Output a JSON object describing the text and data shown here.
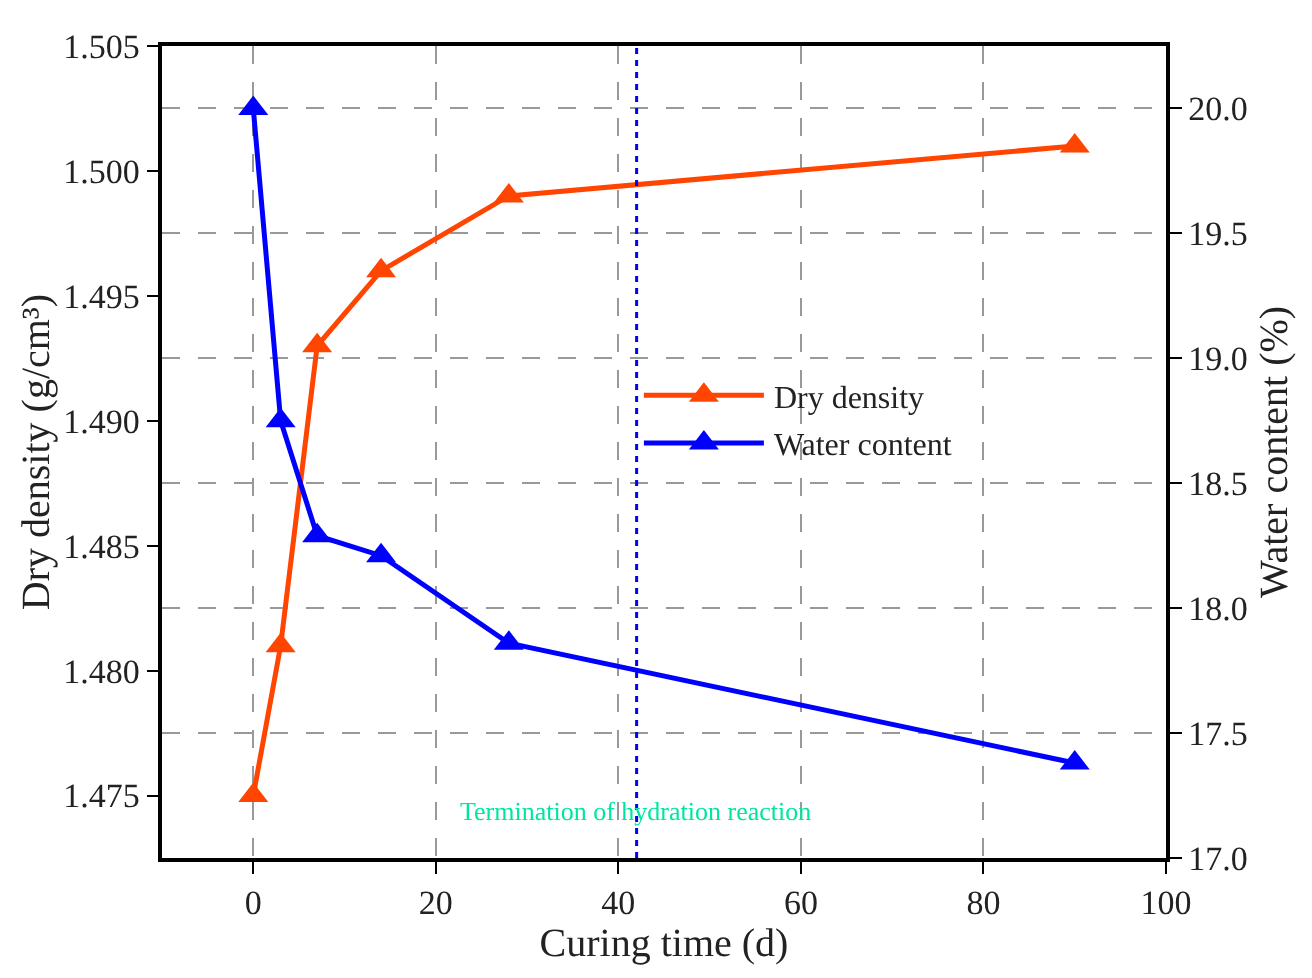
{
  "chart_data": {
    "type": "line",
    "xlabel": "Curing time (d)",
    "ylabel": "Dry density (g/cm³)",
    "y2label": "Water content (%)",
    "x": [
      0,
      3,
      7,
      14,
      28,
      90
    ],
    "series": [
      {
        "name": "Dry density",
        "color": "#ff4500",
        "values": [
          1.475,
          1.481,
          1.493,
          1.496,
          1.499,
          1.501
        ]
      },
      {
        "name": "Water content",
        "color": "#0000ff",
        "axis": "y2",
        "values": [
          20.0,
          18.75,
          18.29,
          18.21,
          17.86,
          17.38
        ]
      }
    ],
    "xlim": [
      -10,
      100
    ],
    "xticks": [
      0,
      20,
      40,
      60,
      80,
      100
    ],
    "ylim": [
      1.4725,
      1.505
    ],
    "yticks": [
      1.475,
      {
        "value": 1.48,
        "label": "1.480"
      },
      1.485,
      {
        "value": 1.49,
        "label": "1.490"
      },
      1.495,
      {
        "value": 1.5,
        "label": "1.500"
      },
      1.505
    ],
    "y2lim": [
      17.0,
      20.25
    ],
    "y2ticks": [
      {
        "value": 17,
        "label": "17.0"
      },
      17.5,
      {
        "value": 18,
        "label": "18.0"
      },
      18.5,
      {
        "value": 19,
        "label": "19.0"
      },
      19.5,
      {
        "value": 20,
        "label": "20.0"
      }
    ],
    "ref_lines": [
      {
        "axis": "x",
        "value": 42,
        "label": "Termination of hydration reaction",
        "color": "#0000ff",
        "line_style": "dotted"
      }
    ],
    "grid": true,
    "legend": "right",
    "marker": "triangle",
    "line_style": "solid"
  }
}
